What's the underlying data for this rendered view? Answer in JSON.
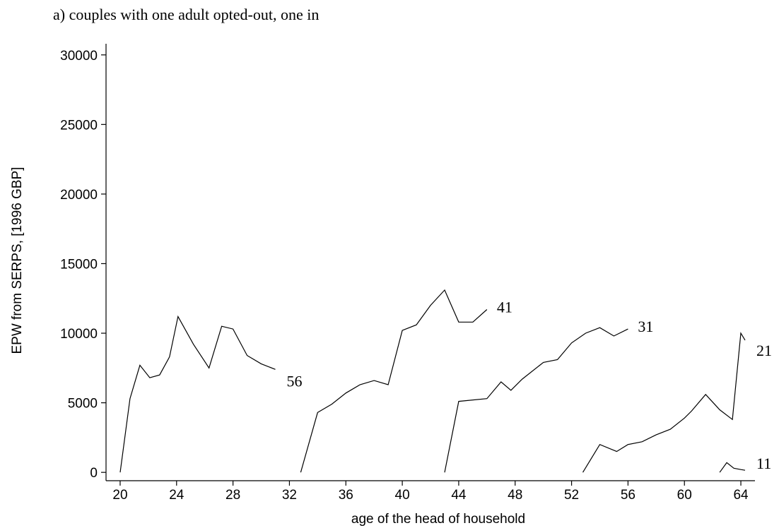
{
  "chart_data": {
    "type": "line",
    "title": "a) couples with one adult opted-out, one in",
    "xlabel": "age of the head of household",
    "ylabel": "EPW from SERPS, [1996 GBP]",
    "xlim": [
      19,
      65
    ],
    "ylim": [
      -600,
      30800
    ],
    "xticks": [
      20,
      24,
      28,
      32,
      36,
      40,
      44,
      48,
      52,
      56,
      60,
      64
    ],
    "yticks": [
      0,
      5000,
      10000,
      15000,
      20000,
      25000,
      30000
    ],
    "grid": false,
    "legend": "none",
    "series": [
      {
        "name": "56",
        "x": [
          20,
          20.7,
          21.4,
          22.1,
          22.8,
          23.5,
          24.1,
          25.2,
          26.3,
          27.2,
          28,
          29,
          30,
          31
        ],
        "y": [
          0,
          5300,
          7700,
          6800,
          7000,
          8300,
          11200,
          9200,
          7500,
          10500,
          10300,
          8400,
          7800,
          7400
        ]
      },
      {
        "name": "41",
        "x": [
          32.8,
          34,
          35,
          36,
          37,
          38,
          39,
          40,
          41,
          42,
          43,
          44,
          45,
          46
        ],
        "y": [
          0,
          4300,
          4900,
          5700,
          6300,
          6600,
          6300,
          10200,
          10600,
          12000,
          13100,
          10800,
          10800,
          11700
        ]
      },
      {
        "name": "31",
        "x": [
          43,
          44,
          46,
          47,
          47.7,
          48.5,
          50,
          51,
          52,
          53,
          54,
          55,
          56
        ],
        "y": [
          0,
          5100,
          5300,
          6500,
          5900,
          6700,
          7900,
          8100,
          9300,
          10000,
          10400,
          9800,
          10300
        ]
      },
      {
        "name": "21",
        "x": [
          52.8,
          54,
          55.2,
          56,
          57,
          58,
          59,
          60,
          60.5,
          61.5,
          62.5,
          63.4,
          64,
          64.3
        ],
        "y": [
          0,
          2000,
          1500,
          2000,
          2200,
          2700,
          3100,
          3900,
          4400,
          5600,
          4500,
          3800,
          10000,
          9500
        ]
      },
      {
        "name": "11",
        "x": [
          62.5,
          63,
          63.5,
          64,
          64.3
        ],
        "y": [
          0,
          700,
          300,
          200,
          150
        ]
      }
    ]
  }
}
